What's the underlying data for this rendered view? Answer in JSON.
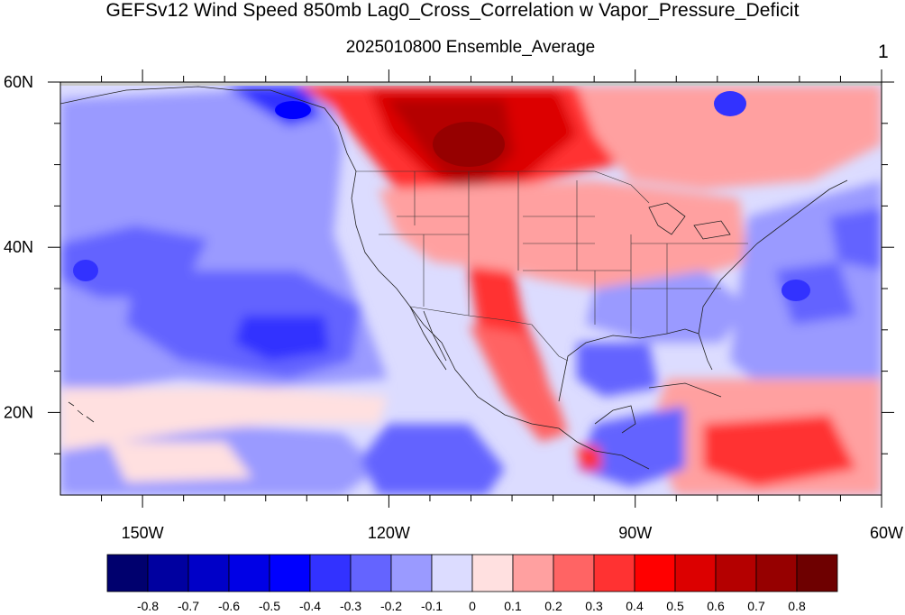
{
  "title": "GEFSv12 Wind Speed 850mb Lag0_Cross_Correlation w Vapor_Pressure_Deficit",
  "subtitle": "2025010800 Ensemble_Average",
  "panel_number": "1",
  "map": {
    "projection": "cylindrical-equidistant",
    "lon_range": [
      -160,
      -60
    ],
    "lat_range": [
      10,
      60
    ],
    "y_tick_labels": [
      {
        "lat": 60,
        "label": "60N"
      },
      {
        "lat": 40,
        "label": "40N"
      },
      {
        "lat": 20,
        "label": "20N"
      }
    ],
    "x_tick_labels": [
      {
        "lon": -150,
        "label": "150W"
      },
      {
        "lon": -120,
        "label": "120W"
      },
      {
        "lon": -90,
        "label": "90W"
      },
      {
        "lon": -60,
        "label": "60W"
      }
    ],
    "land_colors": {
      "border": "#222222"
    }
  },
  "colorbar": {
    "colors": [
      "#00006e",
      "#0000a0",
      "#0000c8",
      "#0000e6",
      "#0000ff",
      "#3232ff",
      "#6464ff",
      "#9a9aff",
      "#dcdcff",
      "#ffe0e0",
      "#ffa0a0",
      "#ff6464",
      "#ff3232",
      "#ff0000",
      "#dc0000",
      "#b40000",
      "#960000",
      "#6e0000"
    ],
    "labels": [
      "-0.8",
      "-0.7",
      "-0.6",
      "-0.5",
      "-0.4",
      "-0.3",
      "-0.2",
      "-0.1",
      "0",
      "0.1",
      "0.2",
      "0.3",
      "0.4",
      "0.5",
      "0.6",
      "0.7",
      "0.8"
    ]
  },
  "field_regions": [
    {
      "name": "north-pacific-broad",
      "value": -0.2
    },
    {
      "name": "pacific-east",
      "value": -0.1
    },
    {
      "name": "gulf-of-alaska",
      "value": -0.4
    },
    {
      "name": "subtropical-pacific-blue",
      "value": -0.3
    },
    {
      "name": "pacific-core-blue",
      "value": -0.4
    },
    {
      "name": "canada-red",
      "value": 0.5
    },
    {
      "name": "canada-core",
      "value": 0.6
    },
    {
      "name": "rockies-red",
      "value": 0.4
    },
    {
      "name": "plains-pink",
      "value": 0.2
    },
    {
      "name": "southeast-blue",
      "value": -0.2
    },
    {
      "name": "atlantic-blue",
      "value": -0.2
    },
    {
      "name": "caribbean-red",
      "value": 0.3
    },
    {
      "name": "mexico-red",
      "value": 0.3
    },
    {
      "name": "tropical-pacific-pink",
      "value": 0.1
    },
    {
      "name": "hawaii-pink",
      "value": 0.1
    }
  ]
}
